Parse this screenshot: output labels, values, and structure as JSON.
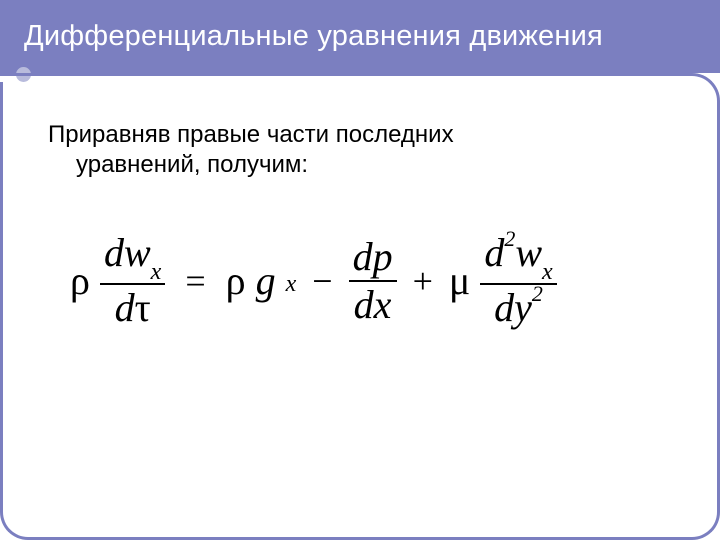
{
  "colors": {
    "header_bg": "#7b7fc0",
    "header_text": "#ffffff",
    "bullet_bg": "#b8bbdc",
    "body_text": "#000000"
  },
  "header": {
    "title": "Дифференциальные уравнения движения"
  },
  "body": {
    "line1": "Приравняв правые части последних",
    "line2": "уравнений, получим:"
  },
  "equation": {
    "type": "math-equation",
    "font_family": "Times New Roman",
    "font_style": "italic",
    "font_size_pt": 40,
    "terms": {
      "lhs": {
        "coef": "ρ",
        "frac_num": "dw_x",
        "frac_den": "dτ"
      },
      "rhs1": {
        "coef": "ρ",
        "var": "g",
        "sub": "x"
      },
      "rhs2": {
        "sign": "−",
        "frac_num": "dp",
        "frac_den": "dx"
      },
      "rhs3": {
        "sign": "+",
        "coef": "μ",
        "frac_num": "d²w_x",
        "frac_num_sup": "2",
        "frac_den": "dy²",
        "frac_den_sup": "2"
      }
    },
    "parts": {
      "rho": "ρ",
      "d": "d",
      "w": "w",
      "x": "x",
      "tau": "τ",
      "g": "g",
      "p": "p",
      "mu": "μ",
      "y": "y",
      "two": "2",
      "equals": "=",
      "minus": "−",
      "plus": "+"
    }
  }
}
